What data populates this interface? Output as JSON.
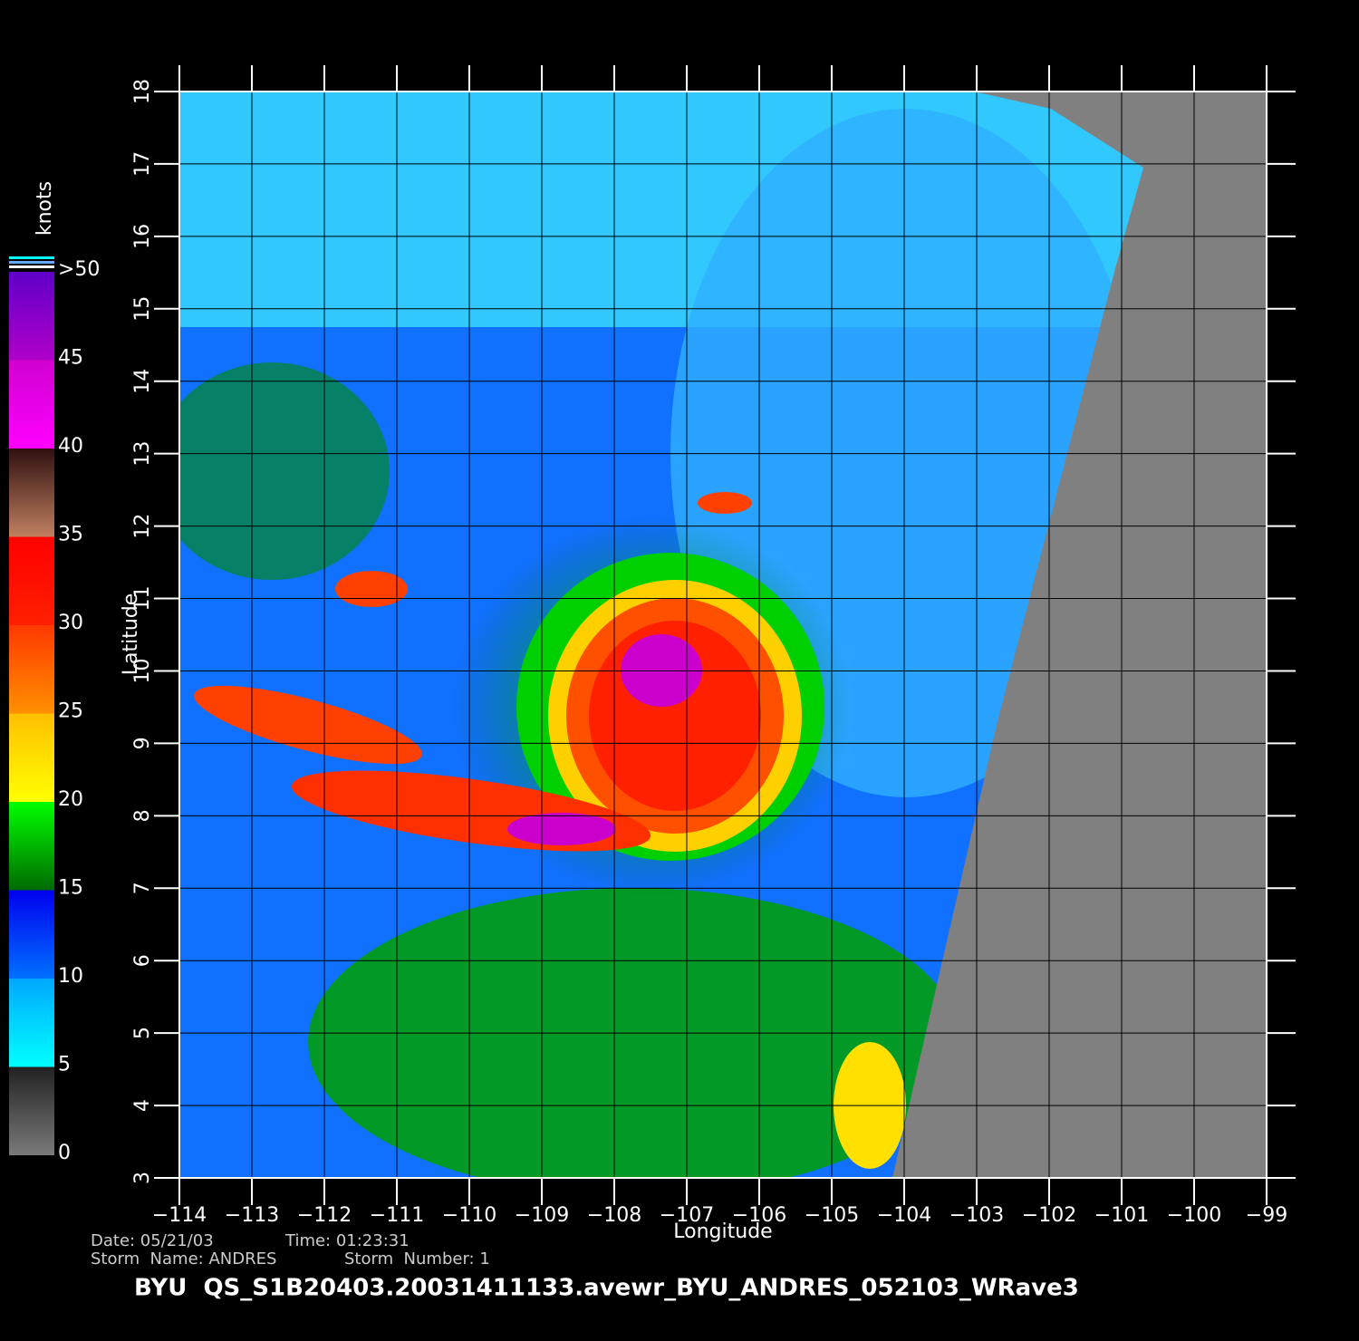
{
  "chart_data": {
    "type": "map",
    "title": "BYU  QS_S1B20403.20031411133.avewr_BYU_ANDRES_052103_WRave3",
    "xlabel": "Longitude",
    "ylabel": "Latitude",
    "info": [
      "Date: 05/21/03",
      "Time: 01:23:31",
      "Storm  Name: ANDRES",
      "Storm  Number: 1"
    ],
    "xlim": [
      -114,
      -99
    ],
    "ylim": [
      3,
      18
    ],
    "xticks": [
      {
        "value": -114,
        "label": "−114"
      },
      {
        "value": -113,
        "label": "−113"
      },
      {
        "value": -112,
        "label": "−112"
      },
      {
        "value": -111,
        "label": "−111"
      },
      {
        "value": -110,
        "label": "−110"
      },
      {
        "value": -109,
        "label": "−109"
      },
      {
        "value": -108,
        "label": "−108"
      },
      {
        "value": -107,
        "label": "−107"
      },
      {
        "value": -106,
        "label": "−106"
      },
      {
        "value": -105,
        "label": "−105"
      },
      {
        "value": -104,
        "label": "−104"
      },
      {
        "value": -103,
        "label": "−103"
      },
      {
        "value": -102,
        "label": "−102"
      },
      {
        "value": -101,
        "label": "−101"
      },
      {
        "value": -100,
        "label": "−100"
      },
      {
        "value": -99,
        "label": "−99"
      }
    ],
    "yticks": [
      3,
      4,
      5,
      6,
      7,
      8,
      9,
      10,
      11,
      12,
      13,
      14,
      15,
      16,
      17,
      18
    ],
    "grid": true,
    "colorbar": {
      "label": "knots",
      "lim": [
        0,
        50
      ],
      "ticks": [
        0,
        5,
        10,
        15,
        20,
        25,
        30,
        35,
        40,
        45,
        {
          "value": 50,
          "label": ">50"
        }
      ],
      "colors": [
        [
          "#7a7a7a",
          "#222222"
        ],
        [
          "#00ffff",
          "#00a8ff"
        ],
        [
          "#0070ff",
          "#0000ee"
        ],
        [
          "#006a00",
          "#00ff00"
        ],
        [
          "#ffff00",
          "#ffc000"
        ],
        [
          "#ff9000",
          "#ff3800"
        ],
        [
          "#ff2000",
          "#ff0000"
        ],
        [
          "#c08060",
          "#301010"
        ],
        [
          "#ff00ff",
          "#d000d0"
        ],
        [
          "#b000c8",
          "#6000c8"
        ]
      ]
    }
  }
}
